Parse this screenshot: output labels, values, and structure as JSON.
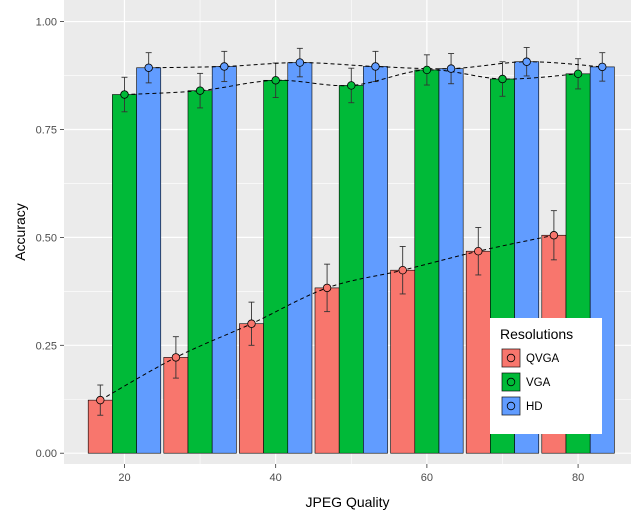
{
  "chart_data": {
    "type": "bar",
    "xlabel": "JPEG Quality",
    "ylabel": "Accuracy",
    "x": [
      20,
      30,
      40,
      50,
      60,
      70,
      80
    ],
    "xticks": [
      20,
      40,
      60,
      80
    ],
    "xtick_labels": [
      "20",
      "40",
      "60",
      "80"
    ],
    "xlim": [
      12,
      87
    ],
    "yticks": [
      0,
      0.25,
      0.5,
      0.75,
      1.0
    ],
    "ytick_labels": [
      "0.00",
      "0.25",
      "0.50",
      "0.75",
      "1.00"
    ],
    "ylim": [
      -0.025,
      1.05
    ],
    "grid": true,
    "panel_background": "#ebebeb",
    "series": [
      {
        "name": "QVGA",
        "color": "#F8766D",
        "values": [
          0.123,
          0.222,
          0.3,
          0.383,
          0.424,
          0.468,
          0.505
        ],
        "error": [
          0.035,
          0.048,
          0.05,
          0.055,
          0.055,
          0.055,
          0.057
        ]
      },
      {
        "name": "VGA",
        "color": "#00BA38",
        "values": [
          0.831,
          0.84,
          0.864,
          0.852,
          0.888,
          0.867,
          0.879
        ],
        "error": [
          0.04,
          0.04,
          0.04,
          0.04,
          0.035,
          0.04,
          0.035
        ]
      },
      {
        "name": "HD",
        "color": "#619CFF",
        "values": [
          0.893,
          0.896,
          0.905,
          0.896,
          0.891,
          0.907,
          0.895
        ],
        "error": [
          0.035,
          0.035,
          0.033,
          0.035,
          0.035,
          0.033,
          0.033
        ]
      }
    ],
    "legend": {
      "title": "Resolutions",
      "placement": "bottom-right",
      "entries": [
        "QVGA",
        "VGA",
        "HD"
      ]
    },
    "trend_lines": "dashed"
  }
}
